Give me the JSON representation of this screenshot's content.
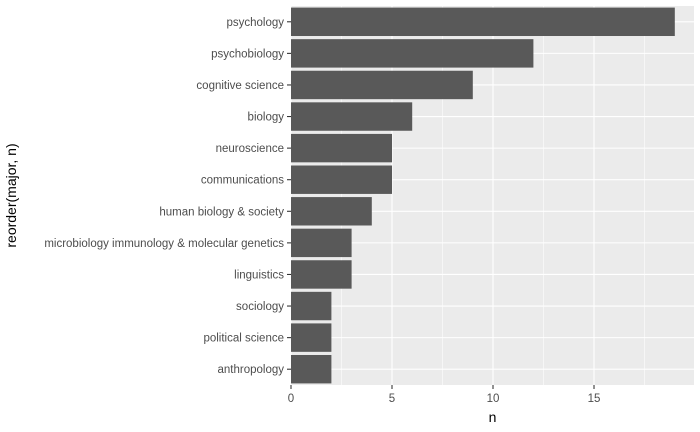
{
  "chart_data": {
    "type": "bar",
    "orientation": "horizontal",
    "categories": [
      "psychology",
      "psychobiology",
      "cognitive science",
      "biology",
      "neuroscience",
      "communications",
      "human biology & society",
      "microbiology immunology & molecular genetics",
      "linguistics",
      "sociology",
      "political science",
      "anthropology"
    ],
    "values": [
      19,
      12,
      9,
      6,
      5,
      5,
      4,
      3,
      3,
      2,
      2,
      2
    ],
    "xlabel": "n",
    "ylabel": "reorder(major, n)",
    "xlim": [
      0,
      19.95
    ],
    "x_ticks": [
      0,
      5,
      10,
      15
    ],
    "grid": true,
    "colors": {
      "bar": "#595959",
      "panel": "#ebebeb",
      "grid": "#ffffff"
    }
  }
}
